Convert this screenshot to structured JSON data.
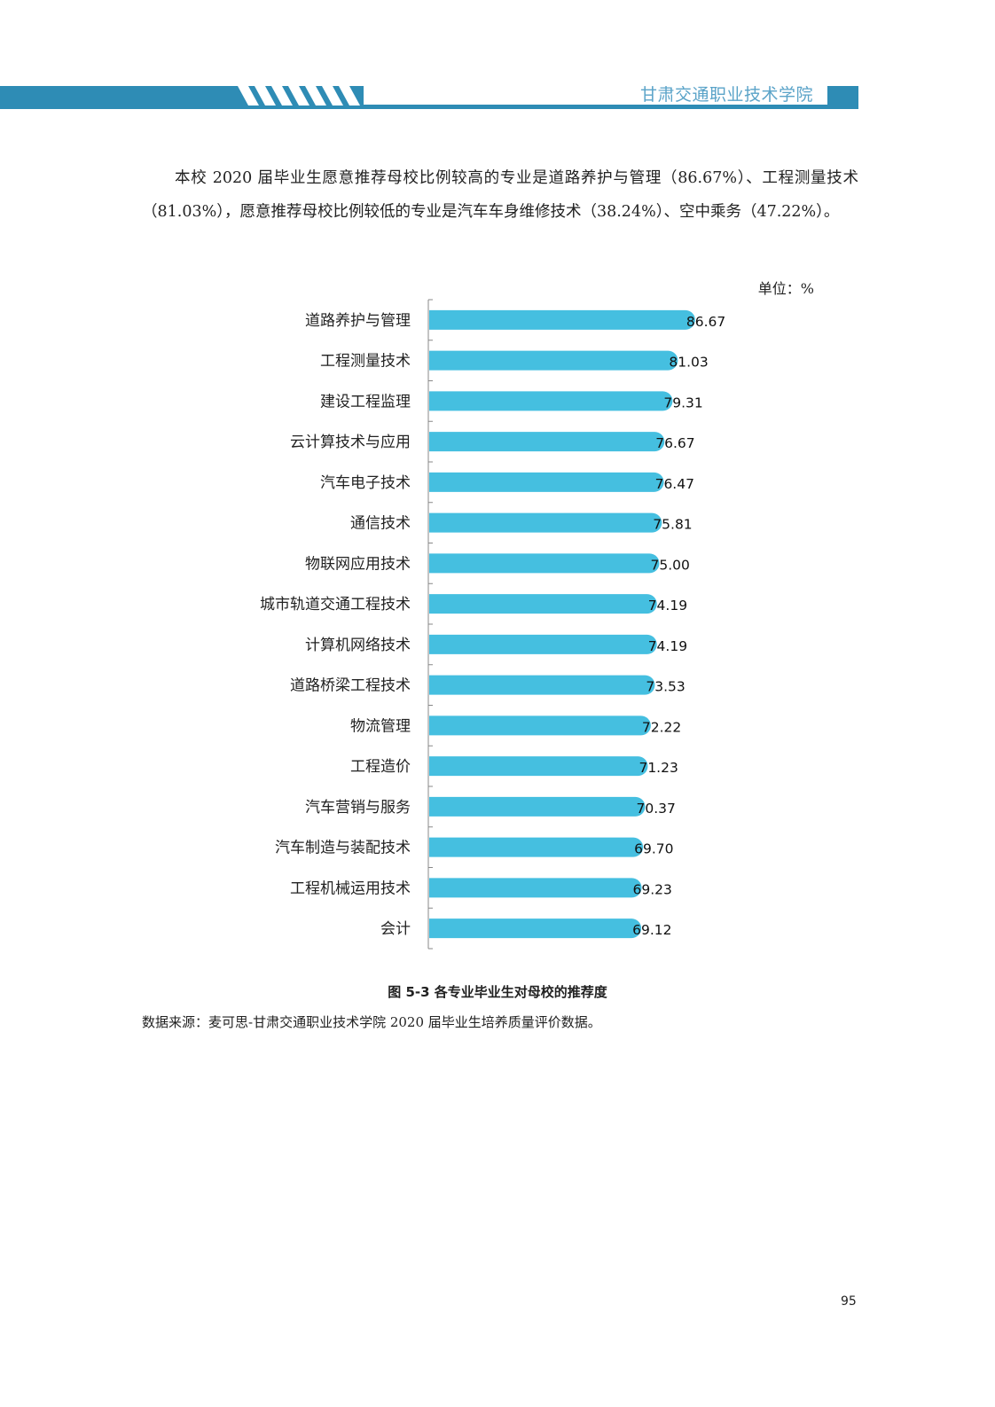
{
  "header": {
    "title": "甘肃交通职业技术学院",
    "band_color": "#2e8cb5",
    "accent_color": "#5aa3c8"
  },
  "body": {
    "paragraph": "本校 2020 届毕业生愿意推荐母校比例较高的专业是道路养护与管理（86.67%）、工程测量技术（81.03%），愿意推荐母校比例较低的专业是汽车车身维修技术（38.24%）、空中乘务（47.22%）。"
  },
  "chart_data": {
    "type": "bar",
    "orientation": "horizontal",
    "unit_label": "单位：%",
    "categories": [
      "道路养护与管理",
      "工程测量技术",
      "建设工程监理",
      "云计算技术与应用",
      "汽车电子技术",
      "通信技术",
      "物联网应用技术",
      "城市轨道交通工程技术",
      "计算机网络技术",
      "道路桥梁工程技术",
      "物流管理",
      "工程造价",
      "汽车营销与服务",
      "汽车制造与装配技术",
      "工程机械运用技术",
      "会计"
    ],
    "values": [
      86.67,
      81.03,
      79.31,
      76.67,
      76.47,
      75.81,
      75.0,
      74.19,
      74.19,
      73.53,
      72.22,
      71.23,
      70.37,
      69.7,
      69.23,
      69.12
    ],
    "value_labels": [
      "86.67",
      "81.03",
      "79.31",
      "76.67",
      "76.47",
      "75.81",
      "75.00",
      "74.19",
      "74.19",
      "73.53",
      "72.22",
      "71.23",
      "70.37",
      "69.70",
      "69.23",
      "69.12"
    ],
    "xlim": [
      0,
      100
    ],
    "bar_color": "#45bfe0",
    "grid": false,
    "caption": "图 5-3 各专业毕业生对母校的推荐度",
    "source": "数据来源：麦可思-甘肃交通职业技术学院 2020 届毕业生培养质量评价数据。"
  },
  "footer": {
    "page_number": "95"
  }
}
